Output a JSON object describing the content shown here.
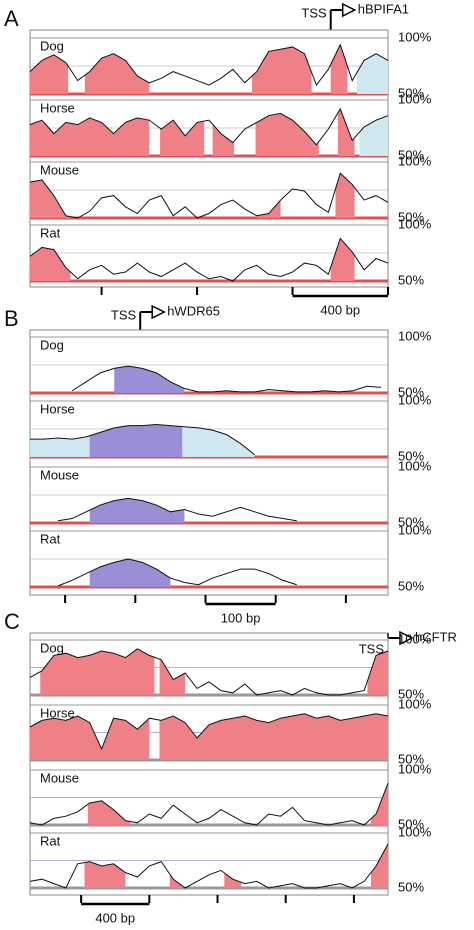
{
  "chart_data": [
    {
      "type": "area",
      "letter": "A",
      "tss": {
        "label": "TSS",
        "gene": "hBPIFA1",
        "x": 1260
      },
      "xlim": [
        0,
        1500
      ],
      "xticks": [
        300,
        700,
        1100,
        1500
      ],
      "scalebar": {
        "start": 1100,
        "value": 400,
        "label": "400 bp"
      },
      "ylim": [
        50,
        100
      ],
      "yticks": [
        {
          "value": 50,
          "label": "50%"
        },
        {
          "value": 100,
          "label": "100%"
        }
      ],
      "grid_values": [
        75
      ],
      "x": [
        0,
        50,
        100,
        150,
        200,
        250,
        300,
        350,
        400,
        450,
        500,
        550,
        600,
        650,
        700,
        750,
        800,
        850,
        900,
        950,
        1000,
        1050,
        1100,
        1150,
        1200,
        1250,
        1300,
        1350,
        1400,
        1450,
        1500
      ],
      "series": [
        {
          "name": "Dog",
          "values": [
            70,
            80,
            85,
            78,
            62,
            70,
            82,
            86,
            80,
            66,
            60,
            64,
            70,
            66,
            62,
            58,
            64,
            72,
            60,
            70,
            88,
            90,
            92,
            86,
            58,
            72,
            94,
            62,
            80,
            86,
            80
          ],
          "regions": [
            {
              "start": 0,
              "end": 160,
              "color": "#f08088"
            },
            {
              "start": 230,
              "end": 500,
              "color": "#f08088"
            },
            {
              "start": 930,
              "end": 1180,
              "color": "#f08088"
            },
            {
              "start": 1260,
              "end": 1330,
              "color": "#f08088"
            },
            {
              "start": 1370,
              "end": 1500,
              "color": "#cfe8f0"
            }
          ]
        },
        {
          "name": "Horse",
          "values": [
            78,
            82,
            70,
            80,
            78,
            84,
            80,
            70,
            80,
            84,
            82,
            74,
            82,
            68,
            80,
            82,
            70,
            62,
            74,
            80,
            86,
            88,
            82,
            72,
            60,
            74,
            92,
            64,
            76,
            82,
            86
          ],
          "regions": [
            {
              "start": 0,
              "end": 500,
              "color": "#f08088"
            },
            {
              "start": 545,
              "end": 730,
              "color": "#f08088"
            },
            {
              "start": 765,
              "end": 855,
              "color": "#f08088"
            },
            {
              "start": 945,
              "end": 1210,
              "color": "#f08088"
            },
            {
              "start": 1290,
              "end": 1360,
              "color": "#f08088"
            },
            {
              "start": 1380,
              "end": 1500,
              "color": "#cfe8f0"
            }
          ]
        },
        {
          "name": "Mouse",
          "values": [
            82,
            84,
            70,
            52,
            50,
            56,
            68,
            70,
            60,
            54,
            66,
            70,
            52,
            60,
            50,
            54,
            62,
            66,
            58,
            52,
            54,
            66,
            76,
            74,
            62,
            55,
            90,
            80,
            66,
            70,
            64
          ],
          "regions": [
            {
              "start": 0,
              "end": 170,
              "color": "#f08088"
            },
            {
              "start": 950,
              "end": 1050,
              "color": "#f08088"
            },
            {
              "start": 1280,
              "end": 1360,
              "color": "#f08088"
            }
          ]
        },
        {
          "name": "Rat",
          "values": [
            72,
            80,
            78,
            62,
            52,
            60,
            64,
            56,
            58,
            66,
            58,
            54,
            60,
            66,
            58,
            52,
            54,
            50,
            60,
            64,
            56,
            54,
            58,
            66,
            64,
            56,
            88,
            76,
            60,
            70,
            66
          ],
          "regions": [
            {
              "start": 0,
              "end": 170,
              "color": "#f08088"
            },
            {
              "start": 1260,
              "end": 1360,
              "color": "#f08088"
            }
          ]
        }
      ]
    },
    {
      "type": "area",
      "letter": "B",
      "tss": {
        "label": "TSS",
        "gene": "hWDR65",
        "x": 157
      },
      "xlim": [
        0,
        510
      ],
      "xticks": [
        50,
        150,
        250,
        350,
        450
      ],
      "scalebar": {
        "start": 250,
        "value": 100,
        "label": "100 bp"
      },
      "ylim": [
        50,
        100
      ],
      "yticks": [
        {
          "value": 50,
          "label": "50%"
        },
        {
          "value": 100,
          "label": "100%"
        }
      ],
      "grid_values": [
        75
      ],
      "x": [
        0,
        20,
        40,
        60,
        80,
        100,
        120,
        140,
        160,
        180,
        200,
        220,
        240,
        260,
        280,
        300,
        320,
        340,
        360,
        380,
        400,
        420,
        440,
        460,
        480,
        500
      ],
      "series": [
        {
          "name": "Dog",
          "values": [
            null,
            null,
            null,
            52,
            60,
            68,
            72,
            74,
            72,
            68,
            60,
            54,
            51,
            51,
            52,
            51,
            51,
            53,
            52,
            51,
            51,
            52,
            51,
            52,
            56,
            55
          ],
          "regions": [
            {
              "start": 120,
              "end": 220,
              "color": "#9a8fd6"
            }
          ]
        },
        {
          "name": "Horse",
          "values": [
            66,
            66,
            67,
            66,
            68,
            72,
            76,
            78,
            78,
            79,
            78,
            77,
            76,
            74,
            70,
            62,
            52,
            null,
            null,
            null,
            null,
            null,
            null,
            null,
            null,
            null
          ],
          "regions": [
            {
              "start": 0,
              "end": 85,
              "color": "#cfe8f0"
            },
            {
              "start": 85,
              "end": 217,
              "color": "#9a8fd6"
            },
            {
              "start": 217,
              "end": 320,
              "color": "#cfe8f0"
            }
          ]
        },
        {
          "name": "Mouse",
          "values": [
            null,
            null,
            52,
            54,
            60,
            66,
            70,
            72,
            70,
            66,
            60,
            62,
            58,
            56,
            60,
            64,
            60,
            56,
            54,
            52,
            null,
            null,
            null,
            null,
            null,
            null
          ],
          "regions": [
            {
              "start": 85,
              "end": 220,
              "color": "#9a8fd6"
            }
          ]
        },
        {
          "name": "Rat",
          "values": [
            null,
            null,
            51,
            56,
            62,
            68,
            72,
            75,
            72,
            66,
            58,
            54,
            52,
            58,
            62,
            66,
            66,
            62,
            56,
            52,
            null,
            null,
            null,
            null,
            null,
            null
          ],
          "regions": [
            {
              "start": 85,
              "end": 200,
              "color": "#9a8fd6"
            }
          ]
        }
      ]
    },
    {
      "type": "area",
      "letter": "C",
      "tss": {
        "label": "TSS",
        "gene": "hCFTR",
        "x": 2100
      },
      "xlim": [
        0,
        2100
      ],
      "xticks": [
        300,
        700,
        1100,
        1500,
        1900
      ],
      "scalebar": {
        "start": 300,
        "value": 400,
        "label": "400 bp"
      },
      "ylim": [
        50,
        100
      ],
      "yticks": [
        {
          "value": 50,
          "label": "50%"
        },
        {
          "value": 100,
          "label": "100%"
        }
      ],
      "grid_values": [
        75
      ],
      "x": [
        0,
        70,
        140,
        210,
        280,
        350,
        420,
        490,
        560,
        630,
        700,
        770,
        840,
        910,
        980,
        1050,
        1120,
        1190,
        1260,
        1330,
        1400,
        1470,
        1540,
        1610,
        1680,
        1750,
        1820,
        1890,
        1960,
        2030,
        2100
      ],
      "series": [
        {
          "name": "Dog",
          "values": [
            66,
            72,
            86,
            88,
            84,
            86,
            90,
            88,
            84,
            92,
            86,
            82,
            64,
            70,
            56,
            62,
            54,
            52,
            60,
            50,
            52,
            54,
            50,
            56,
            52,
            50,
            50,
            52,
            54,
            86,
            90
          ],
          "regions": [
            {
              "start": 60,
              "end": 730,
              "color": "#f08088"
            },
            {
              "start": 760,
              "end": 910,
              "color": "#f08088"
            },
            {
              "start": 1980,
              "end": 2100,
              "color": "#f08088"
            }
          ]
        },
        {
          "name": "Horse",
          "values": [
            80,
            86,
            88,
            86,
            90,
            84,
            60,
            88,
            86,
            78,
            88,
            86,
            90,
            84,
            70,
            82,
            86,
            88,
            90,
            86,
            84,
            88,
            90,
            92,
            88,
            90,
            86,
            88,
            90,
            92,
            90
          ],
          "regions": [
            {
              "start": 0,
              "end": 700,
              "color": "#f08088"
            },
            {
              "start": 760,
              "end": 2100,
              "color": "#f08088"
            }
          ]
        },
        {
          "name": "Mouse",
          "values": [
            52,
            50,
            56,
            58,
            62,
            70,
            72,
            64,
            54,
            52,
            60,
            56,
            68,
            60,
            52,
            56,
            64,
            58,
            52,
            50,
            60,
            58,
            66,
            54,
            52,
            50,
            52,
            54,
            50,
            60,
            88
          ],
          "regions": [
            {
              "start": 340,
              "end": 590,
              "color": "#f08088"
            },
            {
              "start": 2000,
              "end": 2100,
              "color": "#f08088"
            }
          ]
        },
        {
          "name": "Rat",
          "values": [
            56,
            58,
            54,
            50,
            72,
            74,
            70,
            72,
            64,
            60,
            70,
            74,
            58,
            50,
            56,
            62,
            66,
            58,
            54,
            56,
            50,
            52,
            54,
            50,
            50,
            52,
            54,
            50,
            56,
            70,
            90
          ],
          "regions": [
            {
              "start": 320,
              "end": 560,
              "color": "#f08088"
            },
            {
              "start": 820,
              "end": 900,
              "color": "#f08088"
            },
            {
              "start": 1140,
              "end": 1240,
              "color": "#f08088"
            },
            {
              "start": 2000,
              "end": 2100,
              "color": "#f08088"
            }
          ]
        }
      ]
    }
  ]
}
